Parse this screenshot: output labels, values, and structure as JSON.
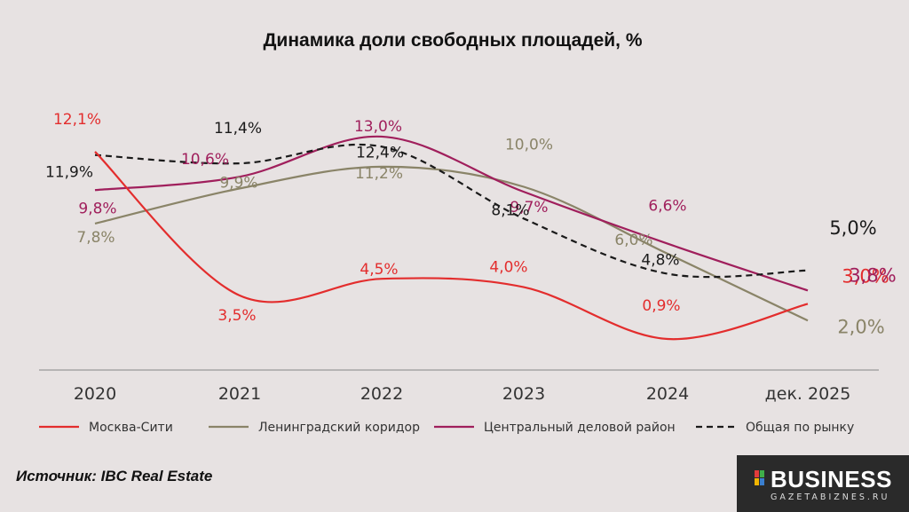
{
  "chart_data": {
    "type": "line",
    "title": "Динамика доли свободных площадей, %",
    "categories": [
      "2020",
      "2021",
      "2022",
      "2023",
      "2024",
      "дек. 2025"
    ],
    "ylabel": "",
    "xlabel": "",
    "series": [
      {
        "name": "Москва-Сити",
        "color": "#e32d2d",
        "dash": false,
        "values": [
          12.1,
          3.5,
          4.5,
          4.0,
          0.9,
          3.0
        ],
        "labels": [
          "12,1%",
          "3,5%",
          "4,5%",
          "4,0%",
          "0,9%",
          "3,0%"
        ]
      },
      {
        "name": "Ленинградский коридор",
        "color": "#8a8468",
        "dash": false,
        "values": [
          7.8,
          9.9,
          11.2,
          10.0,
          6.0,
          2.0
        ],
        "labels": [
          "7,8%",
          "9,9%",
          "11,2%",
          "10,0%",
          "6,0%",
          "2,0%"
        ]
      },
      {
        "name": "Центральный деловой район",
        "color": "#a01f5c",
        "dash": false,
        "values": [
          9.8,
          10.6,
          13.0,
          9.7,
          6.6,
          3.8
        ],
        "labels": [
          "9,8%",
          "10,6%",
          "13,0%",
          "9,7%",
          "6,6%",
          "3,8%"
        ]
      },
      {
        "name": "Общая по рынку",
        "color": "#1a1a1a",
        "dash": true,
        "values": [
          11.9,
          11.4,
          12.4,
          8.1,
          4.8,
          5.0
        ],
        "labels": [
          "11,9%",
          "11,4%",
          "12,4%",
          "8,1%",
          "4,8%",
          "5,0%"
        ]
      }
    ],
    "legend_position": "bottom"
  },
  "source": "Источник: IBC Real Estate",
  "logo": {
    "brand": "BUSINESS",
    "sub": "GAZETABIZNES.RU"
  }
}
